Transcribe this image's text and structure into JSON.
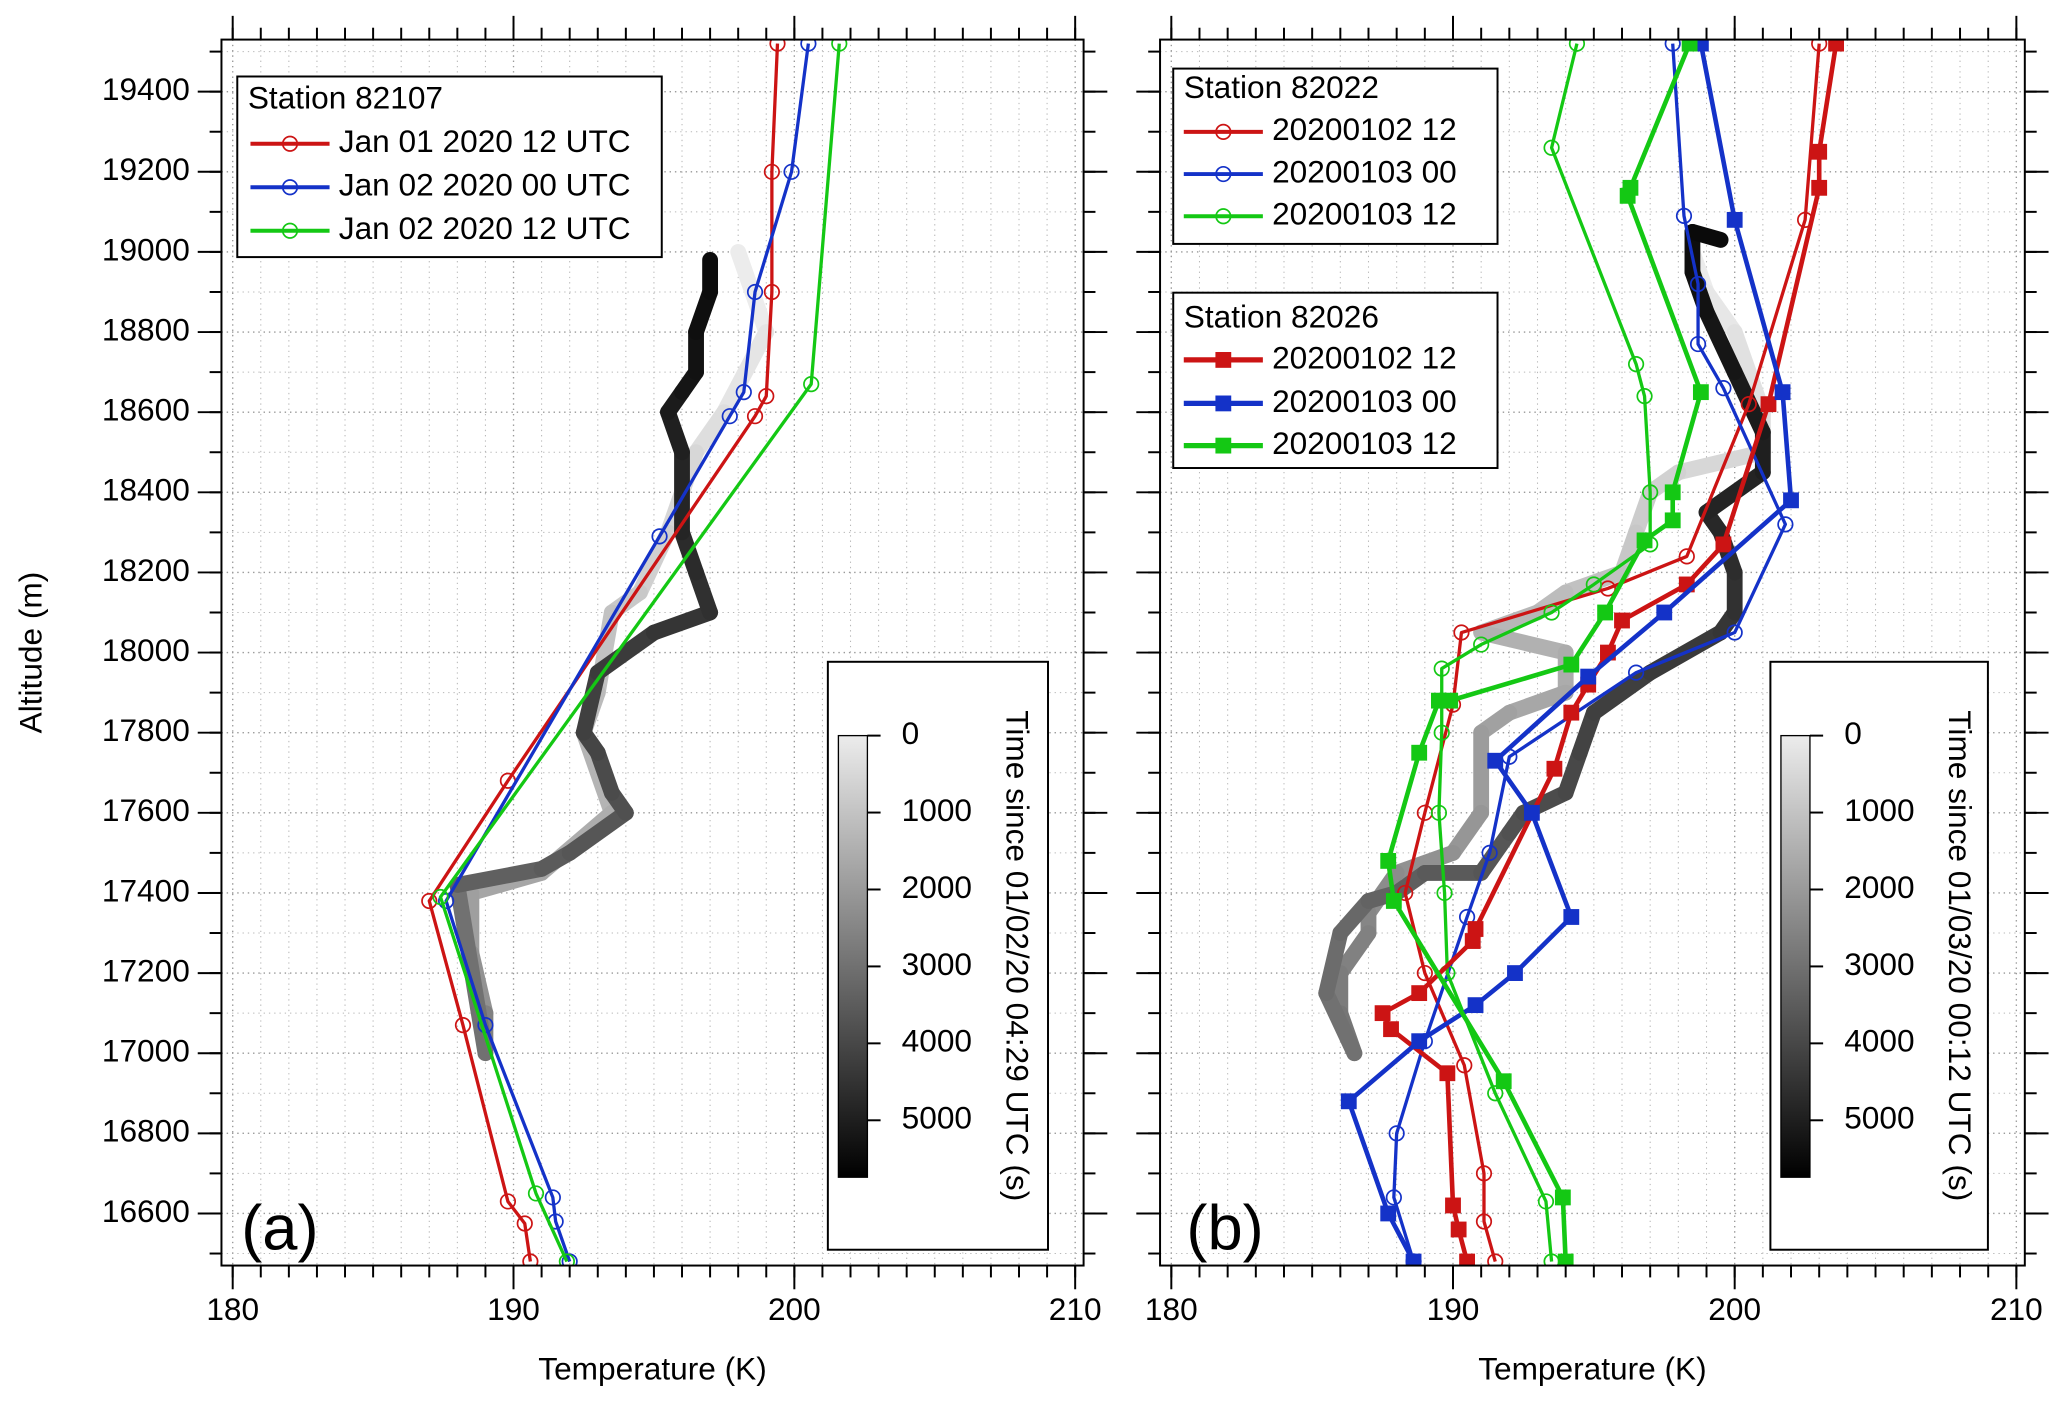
{
  "chart_data": [
    {
      "type": "line",
      "panel_label": "(a)",
      "x_label": "Temperature (K)",
      "y_label": "Altitude (m)",
      "show_ytick_labels": true,
      "xlim": [
        179.6,
        210.3
      ],
      "ylim": [
        16470,
        19530
      ],
      "xticks": [
        180,
        190,
        200,
        210
      ],
      "yticks": [
        16600,
        16800,
        17000,
        17200,
        17400,
        17600,
        17800,
        18000,
        18200,
        18400,
        18600,
        18800,
        19000,
        19200,
        19400
      ],
      "grid": true,
      "groups": [
        {
          "title": "Station 82107",
          "marker": "circle",
          "series": [
            {
              "name": "Jan 01 2020 12 UTC",
              "color": "#cc1414",
              "x": [
                190.6,
                190.4,
                189.8,
                188.2,
                187.0,
                189.8,
                198.6,
                199.0,
                199.2,
                199.2,
                199.4
              ],
              "y": [
                16480,
                16575,
                16630,
                17070,
                17380,
                17680,
                18590,
                18640,
                18900,
                19200,
                19520
              ]
            },
            {
              "name": "Jan 02 2020 00 UTC",
              "color": "#1432c8",
              "x": [
                192.0,
                191.5,
                191.4,
                189.0,
                187.6,
                195.2,
                197.7,
                198.2,
                198.6,
                199.9,
                200.5
              ],
              "y": [
                16480,
                16580,
                16640,
                17070,
                17380,
                18290,
                18590,
                18650,
                18900,
                19200,
                19520
              ]
            },
            {
              "name": "Jan 02 2020 12 UTC",
              "color": "#14c814",
              "x": [
                191.9,
                190.8,
                187.4,
                200.6,
                201.6
              ],
              "y": [
                16480,
                16650,
                17390,
                18670,
                19520
              ]
            }
          ]
        }
      ],
      "trace": {
        "x": [
          198.0,
          199.0,
          197.5,
          196.5,
          195.5,
          194.5,
          193.5,
          193.0,
          192.5,
          193.5,
          191.0,
          188.5,
          188.5,
          189.0,
          189.0,
          188.0,
          191.0,
          192.0,
          194.0,
          193.5,
          193.0,
          192.5,
          193.0,
          195.0,
          197.0,
          196.5,
          196.0,
          196.0,
          195.5,
          196.0,
          196.5,
          196.5,
          197.0,
          197.0
        ],
        "y": [
          19000,
          18800,
          18600,
          18500,
          18300,
          18150,
          18100,
          17900,
          17800,
          17600,
          17450,
          17400,
          17250,
          17100,
          17000,
          17420,
          17460,
          17500,
          17600,
          17650,
          17750,
          17800,
          17950,
          18050,
          18100,
          18200,
          18300,
          18500,
          18600,
          18650,
          18700,
          18800,
          18900,
          18980
        ],
        "time": [
          0,
          170,
          340,
          510,
          680,
          850,
          1020,
          1190,
          1360,
          1530,
          1700,
          1870,
          2200,
          2600,
          3000,
          3400,
          3530,
          3660,
          3790,
          3920,
          4050,
          4180,
          4310,
          4440,
          4570,
          4700,
          4830,
          4960,
          5090,
          5220,
          5300,
          5380,
          5460,
          5540
        ]
      },
      "colorbar": {
        "label": "Time since 01/02/20 04:29 UTC (s)",
        "clim": [
          0,
          5740
        ],
        "ticks": [
          0,
          1000,
          2000,
          3000,
          4000,
          5000
        ],
        "cmap": [
          "#ececec",
          "#000000"
        ]
      }
    },
    {
      "type": "line",
      "panel_label": "(b)",
      "x_label": "Temperature (K)",
      "show_ytick_labels": false,
      "xlim": [
        179.6,
        210.3
      ],
      "ylim": [
        16470,
        19530
      ],
      "xticks": [
        180,
        190,
        200,
        210
      ],
      "yticks": [
        16600,
        16800,
        17000,
        17200,
        17400,
        17600,
        17800,
        18000,
        18200,
        18400,
        18600,
        18800,
        19000,
        19200,
        19400
      ],
      "grid": true,
      "groups": [
        {
          "title": "Station 82022",
          "marker": "circle",
          "series": [
            {
              "name": "20200102 12",
              "color": "#cc1414",
              "x": [
                203.0,
                202.5,
                200.5,
                198.3,
                195.5,
                190.3,
                190.0,
                189.0,
                188.3,
                189.0,
                190.4,
                191.1,
                191.1,
                191.5
              ],
              "y": [
                19520,
                19080,
                18620,
                18240,
                18160,
                18050,
                17870,
                17600,
                17400,
                17200,
                16970,
                16700,
                16580,
                16480
              ]
            },
            {
              "name": "20200103 00",
              "color": "#1432c8",
              "x": [
                197.8,
                198.2,
                198.7,
                198.7,
                199.6,
                201.8,
                200.0,
                196.5,
                192.0,
                191.3,
                190.5,
                189.0,
                188.0,
                187.9,
                188.6
              ],
              "y": [
                19520,
                19090,
                18920,
                18770,
                18660,
                18320,
                18050,
                17950,
                17740,
                17500,
                17340,
                17030,
                16800,
                16640,
                16480
              ]
            },
            {
              "name": "20200103 12",
              "color": "#14c814",
              "x": [
                194.4,
                193.5,
                196.5,
                196.8,
                197.0,
                197.0,
                195.0,
                193.5,
                191.0,
                189.6,
                189.6,
                189.5,
                189.7,
                189.8,
                191.5,
                193.3,
                193.5
              ],
              "y": [
                19520,
                19260,
                18720,
                18640,
                18400,
                18270,
                18170,
                18100,
                18020,
                17960,
                17800,
                17600,
                17400,
                17200,
                16900,
                16630,
                16480
              ]
            }
          ]
        },
        {
          "title": "Station 82026",
          "marker": "square",
          "series": [
            {
              "name": "20200102 12",
              "color": "#cc1414",
              "x": [
                203.6,
                203.0,
                203.0,
                201.2,
                199.6,
                198.3,
                196.0,
                195.5,
                194.8,
                194.2,
                193.6,
                190.8,
                190.7,
                188.8,
                187.5,
                187.8,
                189.8,
                190.0,
                190.2,
                190.5
              ],
              "y": [
                19520,
                19250,
                19160,
                18620,
                18270,
                18170,
                18080,
                18000,
                17920,
                17850,
                17710,
                17310,
                17280,
                17150,
                17100,
                17060,
                16950,
                16620,
                16560,
                16480
              ]
            },
            {
              "name": "20200103 00",
              "color": "#1432c8",
              "x": [
                198.8,
                200.0,
                201.7,
                202.0,
                197.5,
                194.8,
                191.5,
                192.8,
                194.2,
                192.2,
                190.8,
                188.8,
                186.3,
                187.7,
                188.6
              ],
              "y": [
                19520,
                19080,
                18650,
                18380,
                18100,
                17940,
                17730,
                17600,
                17340,
                17200,
                17120,
                17030,
                16880,
                16600,
                16480
              ]
            },
            {
              "name": "20200103 12",
              "color": "#14c814",
              "x": [
                198.4,
                196.3,
                196.2,
                198.8,
                197.8,
                197.8,
                196.8,
                195.4,
                194.2,
                189.9,
                189.5,
                188.8,
                187.7,
                187.9,
                191.8,
                193.9,
                194.0
              ],
              "y": [
                19520,
                19160,
                19140,
                18650,
                18400,
                18330,
                18280,
                18100,
                17970,
                17880,
                17880,
                17750,
                17480,
                17380,
                16930,
                16640,
                16480
              ]
            }
          ]
        }
      ],
      "trace": {
        "x": [
          198.5,
          199.0,
          200.0,
          201.0,
          201.0,
          198.0,
          197.0,
          196.5,
          196.0,
          194.0,
          193.0,
          191.0,
          194.0,
          194.0,
          192.0,
          191.0,
          191.0,
          190.0,
          188.0,
          187.0,
          187.0,
          186.0,
          186.0,
          186.5,
          185.5,
          186.0,
          187.0,
          188.0,
          189.0,
          191.0,
          192.0,
          192.5,
          194.0,
          194.5,
          195.0,
          197.0,
          199.5,
          200.0,
          200.0,
          199.5,
          199.0,
          201.0,
          201.0,
          200.0,
          199.0,
          198.5,
          198.5,
          199.5
        ],
        "y": [
          19000,
          18900,
          18800,
          18600,
          18500,
          18450,
          18400,
          18300,
          18200,
          18150,
          18100,
          18050,
          18000,
          17900,
          17850,
          17800,
          17600,
          17500,
          17450,
          17350,
          17300,
          17200,
          17100,
          17000,
          17150,
          17300,
          17380,
          17400,
          17450,
          17450,
          17550,
          17600,
          17650,
          17750,
          17850,
          17950,
          18050,
          18100,
          18200,
          18300,
          18350,
          18450,
          18550,
          18700,
          18850,
          18950,
          19050,
          19030
        ],
        "time": [
          0,
          130,
          260,
          390,
          520,
          650,
          780,
          910,
          1040,
          1170,
          1300,
          1430,
          1560,
          1690,
          1820,
          1950,
          2080,
          2210,
          2340,
          2470,
          2600,
          2730,
          2860,
          3000,
          3110,
          3220,
          3330,
          3440,
          3550,
          3660,
          3770,
          3880,
          3990,
          4100,
          4210,
          4320,
          4430,
          4540,
          4650,
          4760,
          4870,
          4980,
          5090,
          5200,
          5300,
          5400,
          5500,
          5560
        ]
      },
      "colorbar": {
        "label": "Time since 01/03/20 00:12 UTC (s)",
        "clim": [
          0,
          5740
        ],
        "ticks": [
          0,
          1000,
          2000,
          3000,
          4000,
          5000
        ],
        "cmap": [
          "#ececec",
          "#000000"
        ]
      }
    }
  ]
}
